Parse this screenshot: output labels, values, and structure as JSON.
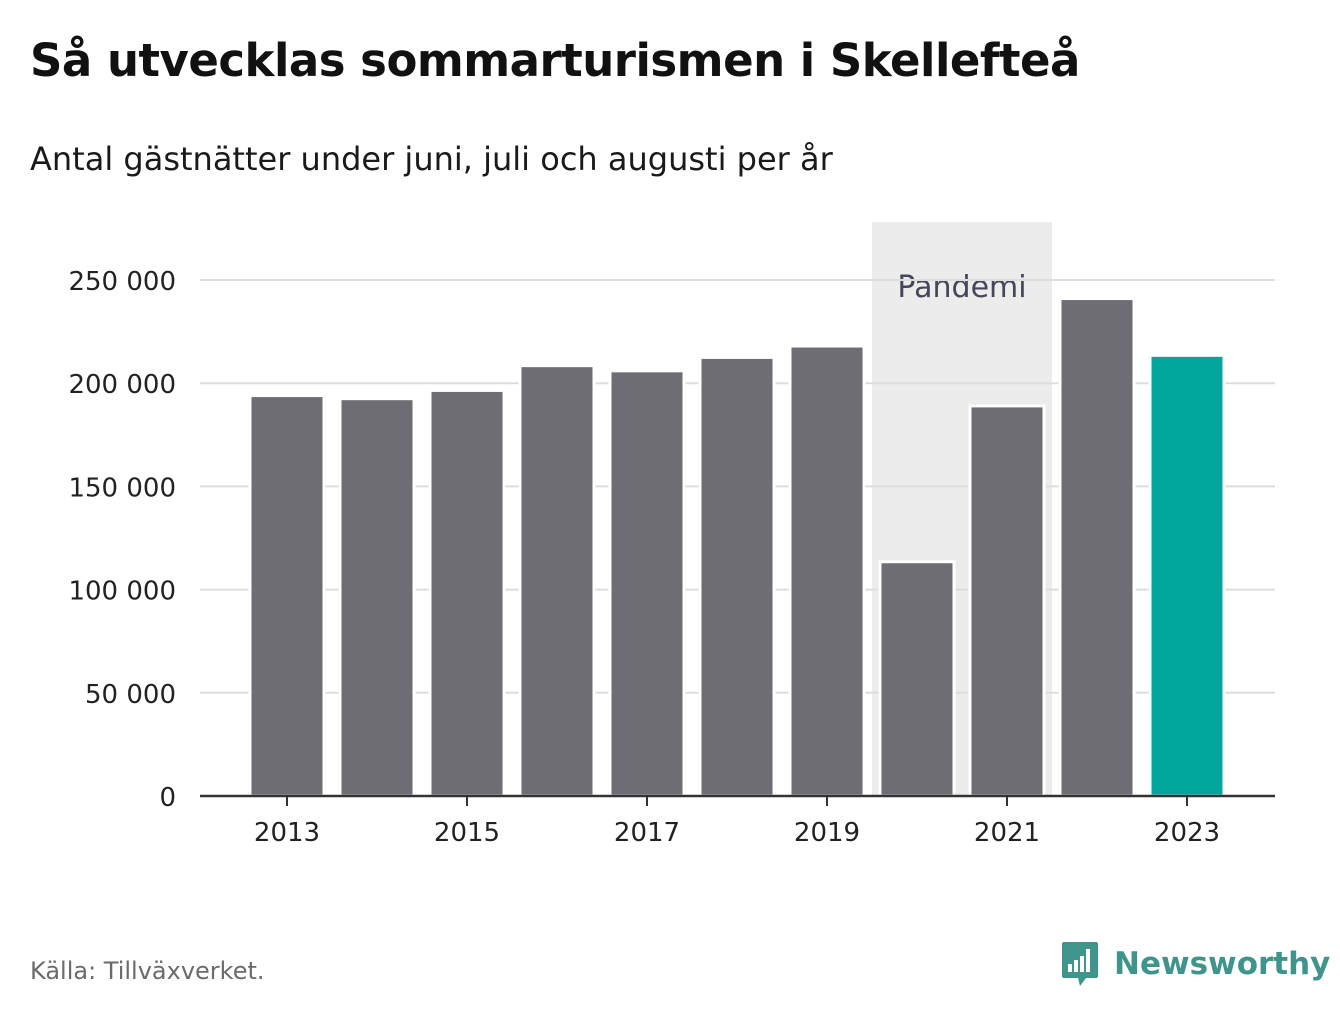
{
  "title": "Så utvecklas sommarturismen i Skellefteå",
  "subtitle": "Antal gästnätter under juni, juli och augusti per år",
  "source": "Källa: Tillväxverket.",
  "brand": {
    "name": "Newsworthy",
    "icon": "newsworthy-logo-icon",
    "color": "#3f948c"
  },
  "colors": {
    "bar": "#6e6d73",
    "highlight": "#00a59b",
    "band": "#ececec",
    "grid": "#dddddd",
    "axis": "#333333"
  },
  "chart_data": {
    "type": "bar",
    "categories": [
      "2013",
      "2014",
      "2015",
      "2016",
      "2017",
      "2018",
      "2019",
      "2020",
      "2021",
      "2022",
      "2023"
    ],
    "values": [
      194000,
      192500,
      196500,
      208500,
      206000,
      212500,
      218000,
      113500,
      189000,
      241000,
      213500
    ],
    "highlight_category": "2023",
    "xticks": [
      "2013",
      "2015",
      "2017",
      "2019",
      "2021",
      "2023"
    ],
    "yticks": [
      0,
      50000,
      100000,
      150000,
      200000,
      250000
    ],
    "ytick_labels": [
      "0",
      "50 000",
      "100 000",
      "150 000",
      "200 000",
      "250 000"
    ],
    "ylim": [
      0,
      265000
    ],
    "grid": true,
    "annotation": {
      "label": "Pandemi",
      "from": "2020",
      "to": "2021"
    }
  }
}
